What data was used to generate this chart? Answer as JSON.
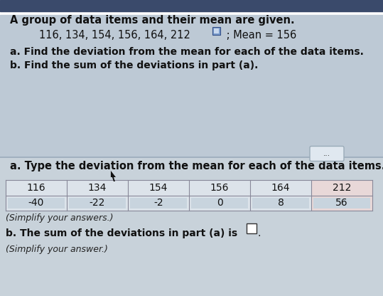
{
  "title_line1": "A group of data items and their mean are given.",
  "data_line": "116, 134, 154, 156, 164, 212",
  "mean_text": " ; Mean = 156",
  "instruction_a": "a. Find the deviation from the mean for each of the data items.",
  "instruction_b": "b. Find the sum of the deviations in part (a).",
  "section_a_label": "a. Type the deviation from the mean for each of the data items.",
  "table_top_row": [
    "116",
    "134",
    "154",
    "156",
    "164",
    "212"
  ],
  "table_bottom_row": [
    "-40",
    "-22",
    "-2",
    "0",
    "8",
    "56"
  ],
  "simplify_note1": "(Simplify your answers.)",
  "part_b_text": "b. The sum of the deviations in part (a) is",
  "simplify_note2": "(Simplify your answer.)",
  "bg_top": "#bdc9d5",
  "bg_bottom": "#c8d2da",
  "top_bar": "#3a4a6b",
  "separator_color": "#9aaabb",
  "table_cell_bg": "#dce3ea",
  "table_highlight_bg": "#e8d8d8",
  "table_border": "#888899",
  "dots_button_bg": "#e0e8f0",
  "dots_button_border": "#9aabb8",
  "box_answer_bg": "#ffffff",
  "box_answer_border": "#333333",
  "text_color": "#111111",
  "italic_color": "#222222",
  "dots_text": "..."
}
